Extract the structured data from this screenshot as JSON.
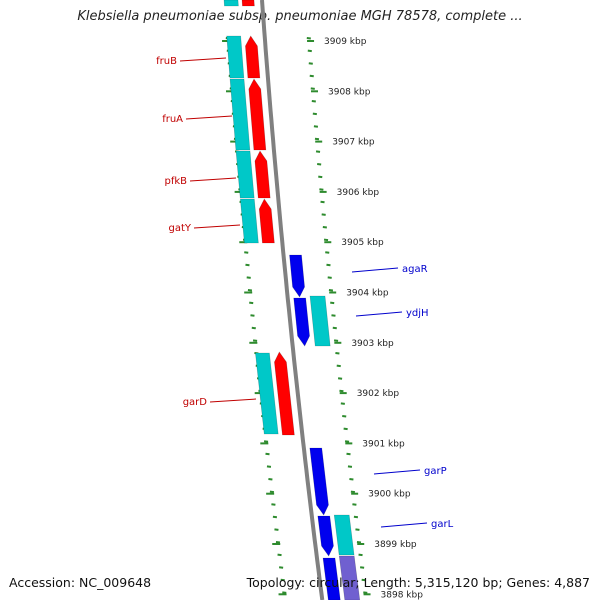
{
  "title": "Klebsiella pneumoniae subsp. pneumoniae MGH 78578, complete ...",
  "footer": {
    "accession": "Accession: NC_009648",
    "topology": "Topology: circular; Length: 5,315,120 bp; Genes: 4,887"
  },
  "colors": {
    "backbone": "#808080",
    "tick": "#2e8b2e",
    "forward_cds": "#ff0000",
    "forward_gene": "#00c8c8",
    "reverse_cds": "#0000ee",
    "reverse_gene": "#00c8c8",
    "reverse_other": "#7060d0",
    "forward_label": "#c00000",
    "reverse_label": "#0000cc"
  },
  "kbp_labels": [
    "3909 kbp",
    "3908 kbp",
    "3907 kbp",
    "3906 kbp",
    "3905 kbp",
    "3904 kbp",
    "3903 kbp",
    "3902 kbp",
    "3901 kbp",
    "3900 kbp",
    "3899 kbp",
    "3898 kbp"
  ],
  "forward_labels": [
    "fruB",
    "fruA",
    "pfkB",
    "gatY",
    "garD"
  ],
  "reverse_labels": [
    "agaR",
    "ydjH",
    "garP",
    "garL"
  ]
}
